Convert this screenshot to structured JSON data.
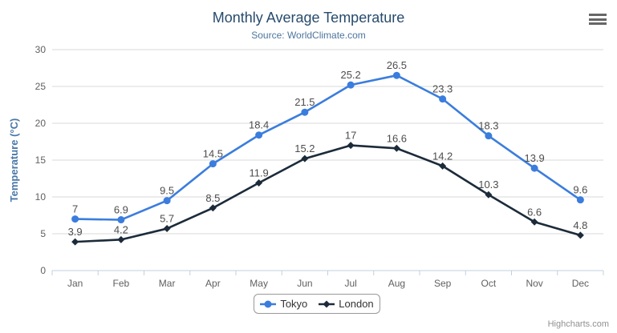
{
  "header": {
    "title": "Monthly Average Temperature",
    "subtitle": "Source: WorldClimate.com"
  },
  "menu": {
    "icon": "hamburger-menu-icon"
  },
  "credits": {
    "label": "Highcharts.com"
  },
  "legend": {
    "position": "bottom-center"
  },
  "colors": {
    "title_text": "#274b6d",
    "subtitle_text": "#4d759e",
    "grid_line": "#d8d8d8",
    "axis_line": "#c0d0e0",
    "tick_text": "#606060",
    "axis_title_text": "#4a77a8",
    "data_label_text": "#4d4d4d",
    "legend_border": "#999999",
    "credits_text": "#909090",
    "menu_icon": "#666666"
  },
  "chart_data": {
    "type": "line",
    "title": "Monthly Average Temperature",
    "subtitle": "Source: WorldClimate.com",
    "categories": [
      "Jan",
      "Feb",
      "Mar",
      "Apr",
      "May",
      "Jun",
      "Jul",
      "Aug",
      "Sep",
      "Oct",
      "Nov",
      "Dec"
    ],
    "series": [
      {
        "name": "Tokyo",
        "color": "#3b7ddd",
        "marker": "circle",
        "values": [
          7,
          6.9,
          9.5,
          14.5,
          18.4,
          21.5,
          25.2,
          26.5,
          23.3,
          18.3,
          13.9,
          9.6
        ]
      },
      {
        "name": "London",
        "color": "#1c2b3a",
        "marker": "diamond",
        "values": [
          3.9,
          4.2,
          5.7,
          8.5,
          11.9,
          15.2,
          17,
          16.6,
          14.2,
          10.3,
          6.6,
          4.8
        ]
      }
    ],
    "xlabel": "",
    "ylabel": "Temperature (°C)",
    "ylim": [
      0,
      30
    ],
    "yticks": [
      0,
      5,
      10,
      15,
      20,
      25,
      30
    ],
    "grid": true,
    "data_labels": true,
    "legend_position": "bottom-center"
  }
}
